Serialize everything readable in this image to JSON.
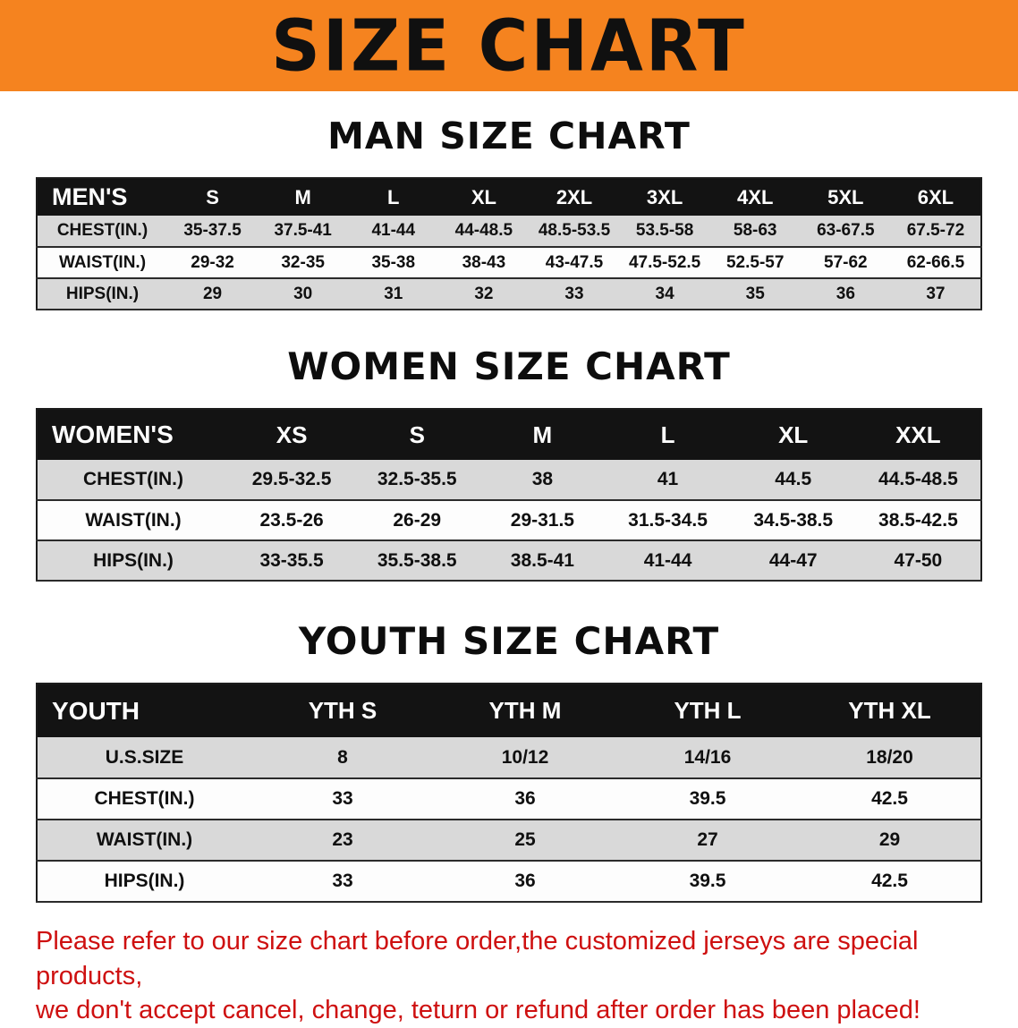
{
  "banner": {
    "title": "SIZE CHART",
    "bg_color": "#f5831f",
    "text_color": "#101010"
  },
  "sections": [
    {
      "id": "men",
      "heading": "MAN SIZE CHART",
      "table": {
        "header": [
          "MEN'S",
          "S",
          "M",
          "L",
          "XL",
          "2XL",
          "3XL",
          "4XL",
          "5XL",
          "6XL"
        ],
        "rows": [
          [
            "CHEST(IN.)",
            "35-37.5",
            "37.5-41",
            "41-44",
            "44-48.5",
            "48.5-53.5",
            "53.5-58",
            "58-63",
            "63-67.5",
            "67.5-72"
          ],
          [
            "WAIST(IN.)",
            "29-32",
            "32-35",
            "35-38",
            "38-43",
            "43-47.5",
            "47.5-52.5",
            "52.5-57",
            "57-62",
            "62-66.5"
          ],
          [
            "HIPS(IN.)",
            "29",
            "30",
            "31",
            "32",
            "33",
            "34",
            "35",
            "36",
            "37"
          ]
        ]
      }
    },
    {
      "id": "women",
      "heading": "WOMEN SIZE CHART",
      "table": {
        "header": [
          "WOMEN'S",
          "XS",
          "S",
          "M",
          "L",
          "XL",
          "XXL"
        ],
        "rows": [
          [
            "CHEST(IN.)",
            "29.5-32.5",
            "32.5-35.5",
            "38",
            "41",
            "44.5",
            "44.5-48.5"
          ],
          [
            "WAIST(IN.)",
            "23.5-26",
            "26-29",
            "29-31.5",
            "31.5-34.5",
            "34.5-38.5",
            "38.5-42.5"
          ],
          [
            "HIPS(IN.)",
            "33-35.5",
            "35.5-38.5",
            "38.5-41",
            "41-44",
            "44-47",
            "47-50"
          ]
        ]
      }
    },
    {
      "id": "youth",
      "heading": "YOUTH SIZE CHART",
      "table": {
        "header": [
          "YOUTH",
          "YTH S",
          "YTH M",
          "YTH L",
          "YTH XL"
        ],
        "rows": [
          [
            "U.S.SIZE",
            "8",
            "10/12",
            "14/16",
            "18/20"
          ],
          [
            "CHEST(IN.)",
            "33",
            "36",
            "39.5",
            "42.5"
          ],
          [
            "WAIST(IN.)",
            "23",
            "25",
            "27",
            "29"
          ],
          [
            "HIPS(IN.)",
            "33",
            "36",
            "39.5",
            "42.5"
          ]
        ]
      }
    }
  ],
  "disclaimer": {
    "line1": "Please refer to our size chart before order,the customized jerseys are special products,",
    "line2": "we don't accept cancel, change, teturn or refund after order has been placed!",
    "color": "#ce1010"
  }
}
